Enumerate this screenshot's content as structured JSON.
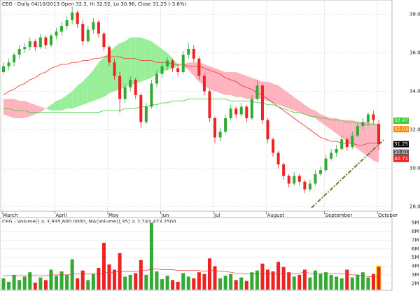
{
  "chart_data": {
    "type": "candlestick",
    "title": "CEG - Daily 04/10/2013 Open 32.3, Hi 32.52, Lo 30.96, Close 31.25 (-3.6%)",
    "categories": [
      "March",
      null,
      null,
      null,
      null,
      null,
      null,
      null,
      null,
      null,
      "April",
      null,
      null,
      null,
      null,
      null,
      null,
      null,
      null,
      null,
      "May",
      null,
      null,
      null,
      null,
      null,
      null,
      null,
      null,
      null,
      "Jun",
      null,
      null,
      null,
      null,
      null,
      null,
      null,
      null,
      null,
      "Jul",
      null,
      null,
      null,
      null,
      null,
      null,
      null,
      null,
      null,
      "August",
      null,
      null,
      null,
      null,
      null,
      null,
      null,
      null,
      null,
      null,
      "September",
      null,
      null,
      null,
      null,
      null,
      null,
      null,
      null,
      null,
      "October"
    ],
    "ohlc": [
      [
        35.0,
        35.5,
        34.9,
        35.3
      ],
      [
        35.3,
        35.7,
        35.1,
        35.5
      ],
      [
        35.5,
        36.0,
        35.3,
        35.9
      ],
      [
        35.9,
        36.4,
        35.7,
        36.2
      ],
      [
        36.2,
        36.5,
        36.0,
        36.3
      ],
      [
        36.3,
        36.8,
        36.1,
        36.6
      ],
      [
        36.6,
        36.7,
        36.1,
        36.3
      ],
      [
        36.3,
        37.0,
        36.2,
        36.8
      ],
      [
        36.8,
        36.9,
        36.2,
        36.4
      ],
      [
        36.4,
        37.0,
        36.3,
        36.9
      ],
      [
        36.9,
        37.3,
        36.7,
        37.1
      ],
      [
        37.1,
        37.6,
        36.9,
        37.4
      ],
      [
        37.4,
        37.9,
        37.2,
        37.7
      ],
      [
        37.7,
        38.4,
        37.5,
        38.1
      ],
      [
        38.1,
        38.2,
        37.3,
        37.5
      ],
      [
        37.5,
        37.7,
        36.4,
        36.6
      ],
      [
        36.6,
        37.4,
        36.5,
        37.2
      ],
      [
        37.2,
        37.8,
        37.0,
        37.6
      ],
      [
        37.6,
        37.7,
        36.8,
        37.0
      ],
      [
        37.0,
        37.1,
        36.1,
        36.3
      ],
      [
        36.3,
        36.4,
        35.3,
        35.5
      ],
      [
        35.5,
        35.7,
        34.6,
        34.8
      ],
      [
        34.8,
        35.0,
        32.9,
        33.6
      ],
      [
        33.6,
        34.4,
        33.4,
        34.2
      ],
      [
        34.2,
        34.8,
        34.0,
        34.6
      ],
      [
        34.6,
        34.7,
        33.6,
        33.8
      ],
      [
        33.8,
        33.9,
        32.1,
        32.4
      ],
      [
        32.4,
        33.4,
        32.3,
        33.2
      ],
      [
        33.2,
        34.6,
        33.1,
        34.4
      ],
      [
        34.4,
        35.1,
        34.2,
        34.9
      ],
      [
        34.9,
        35.5,
        34.7,
        35.3
      ],
      [
        35.3,
        35.8,
        35.1,
        35.6
      ],
      [
        35.6,
        35.7,
        35.0,
        35.2
      ],
      [
        35.2,
        35.4,
        34.8,
        35.0
      ],
      [
        35.0,
        36.1,
        34.9,
        35.9
      ],
      [
        35.9,
        36.5,
        35.7,
        36.2
      ],
      [
        36.2,
        36.4,
        35.5,
        35.7
      ],
      [
        35.7,
        35.8,
        34.6,
        34.8
      ],
      [
        34.8,
        34.9,
        33.8,
        34.0
      ],
      [
        34.0,
        34.1,
        32.4,
        32.6
      ],
      [
        32.6,
        32.7,
        31.3,
        31.6
      ],
      [
        31.6,
        32.1,
        31.4,
        31.9
      ],
      [
        31.9,
        32.8,
        31.8,
        32.6
      ],
      [
        32.6,
        33.3,
        32.5,
        33.1
      ],
      [
        33.1,
        33.2,
        32.6,
        32.8
      ],
      [
        32.8,
        33.4,
        32.7,
        33.2
      ],
      [
        33.2,
        33.3,
        32.4,
        32.6
      ],
      [
        32.6,
        33.8,
        32.5,
        33.6
      ],
      [
        33.6,
        34.6,
        33.5,
        34.3
      ],
      [
        34.3,
        34.4,
        32.3,
        32.5
      ],
      [
        32.5,
        32.6,
        31.3,
        31.5
      ],
      [
        31.5,
        31.6,
        30.6,
        30.8
      ],
      [
        30.8,
        30.9,
        30.0,
        30.2
      ],
      [
        30.2,
        30.3,
        29.4,
        29.6
      ],
      [
        29.6,
        29.7,
        29.0,
        29.2
      ],
      [
        29.2,
        29.8,
        29.1,
        29.6
      ],
      [
        29.6,
        29.7,
        29.1,
        29.3
      ],
      [
        29.3,
        29.4,
        28.7,
        28.9
      ],
      [
        28.9,
        29.4,
        28.8,
        29.2
      ],
      [
        29.2,
        29.9,
        29.1,
        29.7
      ],
      [
        29.7,
        30.1,
        29.6,
        29.9
      ],
      [
        29.9,
        30.7,
        29.8,
        30.5
      ],
      [
        30.5,
        31.0,
        30.4,
        30.8
      ],
      [
        30.8,
        31.2,
        30.6,
        31.0
      ],
      [
        31.0,
        31.7,
        30.9,
        31.5
      ],
      [
        31.5,
        31.6,
        30.9,
        31.1
      ],
      [
        31.1,
        31.9,
        31.0,
        31.7
      ],
      [
        31.7,
        32.4,
        31.6,
        32.2
      ],
      [
        32.2,
        32.6,
        32.0,
        32.4
      ],
      [
        32.4,
        32.9,
        32.2,
        32.8
      ],
      [
        32.8,
        33.0,
        32.3,
        32.5
      ],
      [
        32.3,
        32.52,
        30.96,
        31.25
      ]
    ],
    "up_color": "#33aa33",
    "down_color": "#ee2222",
    "lines": [
      {
        "color": "#ee3333",
        "values": [
          33.8,
          34.0,
          34.1,
          34.3,
          34.4,
          34.6,
          34.7,
          34.9,
          35.0,
          35.2,
          35.3,
          35.4,
          35.4,
          35.5,
          35.5,
          35.6,
          35.6,
          35.7,
          35.7,
          35.8,
          35.8,
          35.8,
          35.8,
          35.7,
          35.7,
          35.7,
          35.6,
          35.6,
          35.6,
          35.5,
          35.5,
          35.5,
          35.4,
          35.4,
          35.4,
          35.3,
          35.3,
          35.3,
          35.2,
          35.1,
          35.0,
          34.9,
          34.7,
          34.6,
          34.5,
          34.3,
          34.2,
          34.1,
          33.9,
          33.8,
          33.6,
          33.4,
          33.2,
          33.0,
          32.8,
          32.6,
          32.4,
          32.2,
          32.0,
          31.8,
          31.6,
          31.5,
          31.4,
          31.4,
          31.3,
          31.3,
          31.3,
          31.2,
          31.2,
          31.3,
          31.3,
          31.3
        ]
      },
      {
        "color": "#33cc33",
        "values": [
          33.1,
          33.1,
          33.0,
          33.0,
          33.0,
          32.9,
          32.9,
          32.9,
          32.9,
          32.9,
          32.9,
          32.9,
          32.9,
          32.9,
          32.9,
          32.9,
          32.9,
          32.9,
          32.9,
          33.0,
          33.0,
          33.0,
          33.0,
          33.1,
          33.1,
          33.1,
          33.2,
          33.2,
          33.3,
          33.3,
          33.4,
          33.4,
          33.5,
          33.5,
          33.5,
          33.6,
          33.6,
          33.6,
          33.6,
          33.6,
          33.6,
          33.6,
          33.6,
          33.5,
          33.5,
          33.5,
          33.5,
          33.5,
          33.4,
          33.4,
          33.3,
          33.3,
          33.2,
          33.1,
          33.0,
          32.9,
          32.9,
          32.8,
          32.7,
          32.7,
          32.6,
          32.6,
          32.5,
          32.5,
          32.5,
          32.4,
          32.4,
          32.4,
          32.3,
          32.3,
          32.3,
          32.3
        ]
      }
    ],
    "cloud": {
      "up_color": "#99ee99",
      "down_color": "#ffb3bf",
      "span_a": [
        32.8,
        32.7,
        32.6,
        32.6,
        32.6,
        32.7,
        32.8,
        32.9,
        33.1,
        33.3,
        33.5,
        33.6,
        33.8,
        34.0,
        34.3,
        34.5,
        34.8,
        35.1,
        35.5,
        35.8,
        36.0,
        36.3,
        36.5,
        36.6,
        36.8,
        36.8,
        36.8,
        36.7,
        36.6,
        36.4,
        36.2,
        36.0,
        35.7,
        35.4,
        35.3,
        35.1,
        34.8,
        34.5,
        34.3,
        34.1,
        34.0,
        33.9,
        33.8,
        33.8,
        33.7,
        33.7,
        33.6,
        33.6,
        33.6,
        33.6,
        33.5,
        33.4,
        33.3,
        33.2,
        33.1,
        33.0,
        32.9,
        32.8,
        32.7,
        32.6,
        32.4,
        32.2,
        32.0,
        31.8,
        31.6,
        31.4,
        31.2,
        31.0,
        30.8,
        30.6,
        30.4,
        30.3
      ],
      "span_b": [
        33.6,
        33.6,
        33.6,
        33.5,
        33.5,
        33.4,
        33.3,
        33.2,
        33.1,
        33.0,
        33.0,
        33.0,
        33.1,
        33.1,
        33.2,
        33.3,
        33.4,
        33.5,
        33.6,
        33.7,
        33.9,
        34.0,
        34.1,
        34.2,
        34.3,
        34.4,
        34.5,
        34.6,
        34.7,
        34.9,
        35.0,
        35.1,
        35.2,
        35.3,
        35.4,
        35.5,
        35.5,
        35.5,
        35.4,
        35.3,
        35.2,
        35.1,
        35.0,
        35.0,
        35.0,
        34.9,
        34.8,
        34.7,
        34.6,
        34.5,
        34.5,
        34.4,
        34.3,
        34.1,
        33.9,
        33.7,
        33.5,
        33.3,
        33.1,
        33.0,
        32.8,
        32.7,
        32.6,
        32.6,
        32.5,
        32.5,
        32.5,
        32.4,
        32.4,
        32.4,
        32.3,
        32.3
      ]
    },
    "ylim": [
      27.8,
      38.6
    ],
    "yticks": [
      {
        "value": 28,
        "label": "28.0"
      },
      {
        "value": 30,
        "label": "30.0"
      },
      {
        "value": 32,
        "label": "32.0"
      },
      {
        "value": 34,
        "label": "34.0"
      },
      {
        "value": 36,
        "label": "36.0"
      },
      {
        "value": 38,
        "label": "38.0"
      }
    ],
    "price_tags": [
      {
        "value": 32.47,
        "label": "32.47",
        "color": "#33cc33"
      },
      {
        "value": 32.03,
        "label": "32.03",
        "color": "#ff8800"
      },
      {
        "value": 31.25,
        "label": "31.25",
        "color": "#000000"
      },
      {
        "value": 30.81,
        "label": "30.81",
        "color": "#555555"
      },
      {
        "value": 30.71,
        "label": "30.71",
        "color": "#ee2222"
      }
    ],
    "volume": {
      "title": "CEG - Volume() = 3,935,600.0000, MA(Volume(),35) = 2,743,473.2500",
      "values": [
        2.6,
        2.2,
        3.0,
        2.4,
        2.8,
        3.3,
        2.1,
        2.7,
        2.4,
        3.6,
        2.9,
        3.4,
        3.0,
        4.8,
        2.6,
        3.5,
        2.4,
        3.1,
        3.8,
        6.7,
        4.2,
        3.6,
        5.5,
        2.8,
        3.0,
        3.2,
        4.7,
        3.0,
        9.0,
        3.4,
        2.5,
        2.9,
        2.4,
        2.2,
        3.2,
        2.8,
        2.6,
        3.3,
        3.1,
        4.9,
        4.0,
        2.6,
        2.9,
        3.1,
        2.4,
        2.7,
        2.3,
        3.3,
        3.5,
        4.3,
        3.6,
        3.4,
        4.5,
        3.9,
        3.3,
        2.8,
        3.0,
        3.6,
        2.7,
        3.5,
        3.1,
        3.3,
        3.0,
        2.8,
        2.6,
        3.6,
        2.7,
        3.0,
        3.3,
        2.7,
        3.1,
        3.9356
      ],
      "ma_color": "#ee3333",
      "ma_values": [
        2.9,
        2.9,
        2.9,
        2.9,
        2.9,
        2.9,
        2.9,
        2.9,
        2.9,
        3.0,
        3.0,
        3.0,
        3.0,
        3.1,
        3.1,
        3.1,
        3.1,
        3.1,
        3.1,
        3.2,
        3.3,
        3.3,
        3.4,
        3.4,
        3.4,
        3.4,
        3.5,
        3.5,
        3.7,
        3.7,
        3.6,
        3.6,
        3.6,
        3.5,
        3.5,
        3.5,
        3.5,
        3.5,
        3.4,
        3.5,
        3.5,
        3.4,
        3.4,
        3.3,
        3.2,
        3.2,
        3.1,
        3.1,
        3.1,
        3.1,
        3.1,
        3.2,
        3.2,
        3.2,
        3.2,
        3.2,
        3.2,
        3.3,
        3.2,
        3.2,
        3.2,
        3.2,
        3.2,
        3.2,
        3.1,
        3.1,
        3.0,
        3.0,
        2.9,
        2.8,
        2.8,
        2.74347325
      ],
      "ylim": [
        1.3,
        9.45
      ],
      "yticks": [
        {
          "value": 2,
          "label": "2M"
        },
        {
          "value": 3,
          "label": "3M"
        },
        {
          "value": 4,
          "label": "4M"
        },
        {
          "value": 5,
          "label": "5M"
        },
        {
          "value": 6,
          "label": "6M"
        },
        {
          "value": 7,
          "label": "7M"
        },
        {
          "value": 8,
          "label": "8M"
        },
        {
          "value": 9,
          "label": "9M"
        }
      ]
    }
  }
}
